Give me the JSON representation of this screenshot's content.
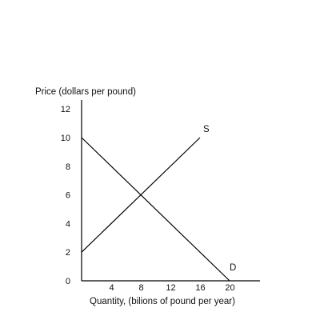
{
  "chart_data": {
    "type": "line",
    "title": "",
    "ylabel": "Price (dollars per pound)",
    "xlabel": "Quantity, (bilions of pound per year)",
    "x_ticks": [
      4,
      8,
      12,
      16,
      20
    ],
    "y_ticks": [
      0,
      2,
      4,
      6,
      8,
      10,
      12
    ],
    "xlim": [
      0,
      24
    ],
    "ylim": [
      0,
      13
    ],
    "grid": false,
    "series": [
      {
        "name": "S",
        "points": [
          {
            "x": 0,
            "y": 2
          },
          {
            "x": 16,
            "y": 10
          }
        ]
      },
      {
        "name": "D",
        "points": [
          {
            "x": 0,
            "y": 10
          },
          {
            "x": 20,
            "y": 0
          }
        ]
      }
    ],
    "colors": {
      "axis": "#000000",
      "line": "#000000",
      "text": "#111111"
    }
  }
}
